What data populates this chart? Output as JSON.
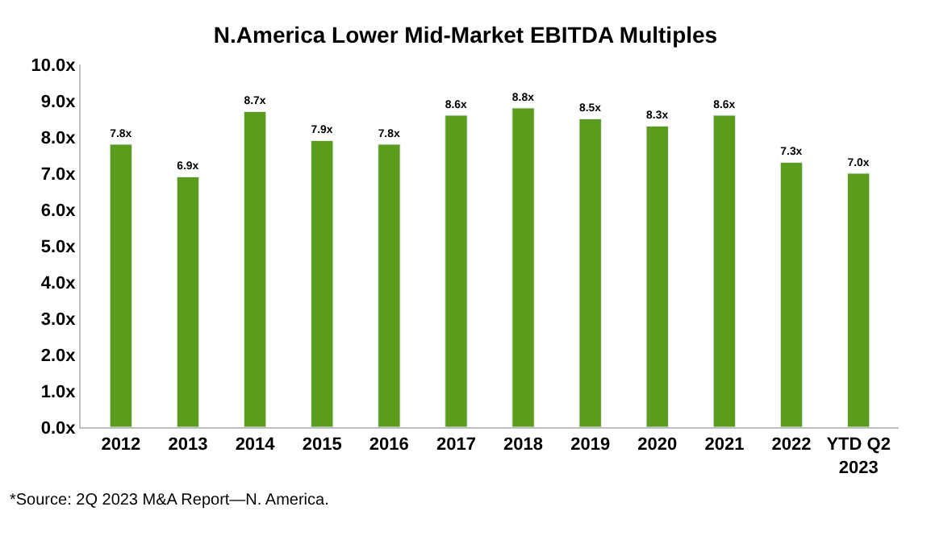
{
  "chart_data": {
    "type": "bar",
    "title": "N.America Lower Mid-Market EBITDA Multiples",
    "categories": [
      "2012",
      "2013",
      "2014",
      "2015",
      "2016",
      "2017",
      "2018",
      "2019",
      "2020",
      "2021",
      "2022",
      "YTD Q2\n2023"
    ],
    "values": [
      7.8,
      6.9,
      8.7,
      7.9,
      7.8,
      8.6,
      8.8,
      8.5,
      8.3,
      8.6,
      7.3,
      7.0
    ],
    "value_labels": [
      "7.8x",
      "6.9x",
      "8.7x",
      "7.9x",
      "7.8x",
      "8.6x",
      "8.8x",
      "8.5x",
      "8.3x",
      "8.6x",
      "7.3x",
      "7.0x"
    ],
    "color": "#5b9c1c",
    "ylim": [
      0,
      10
    ],
    "yticks": [
      {
        "value": 0,
        "label": "0.0x"
      },
      {
        "value": 1,
        "label": "1.0x"
      },
      {
        "value": 2,
        "label": "2.0x"
      },
      {
        "value": 3,
        "label": "3.0x"
      },
      {
        "value": 4,
        "label": "4.0x"
      },
      {
        "value": 5,
        "label": "5.0x"
      },
      {
        "value": 6,
        "label": "6.0x"
      },
      {
        "value": 7,
        "label": "7.0x"
      },
      {
        "value": 8,
        "label": "8.0x"
      },
      {
        "value": 9,
        "label": "9.0x"
      },
      {
        "value": 10,
        "label": "10.0x"
      }
    ],
    "grid": false,
    "legend": false,
    "annotations": [
      "*Source: 2Q 2023 M&A Report—N. America."
    ]
  }
}
